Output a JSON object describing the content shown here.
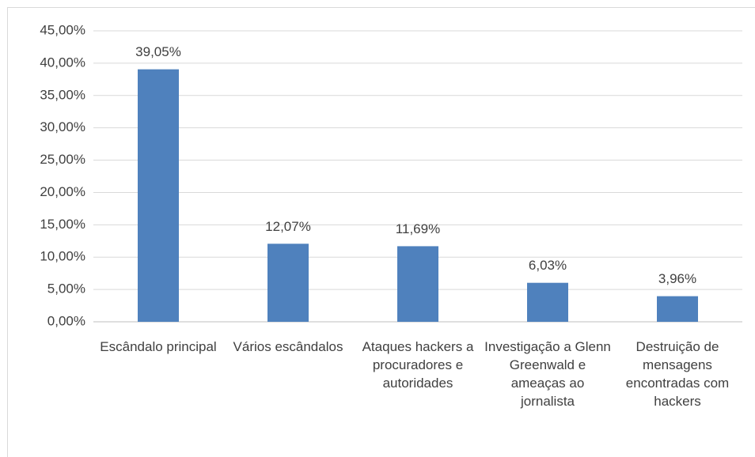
{
  "chart_data": {
    "type": "bar",
    "categories": [
      "Escândalo principal",
      "Vários escândalos",
      "Ataques hackers a procuradores e autoridades",
      "Investigação a Glenn Greenwald e ameaças ao jornalista",
      "Destruição de mensagens encontradas com hackers"
    ],
    "values": [
      39.05,
      12.07,
      11.69,
      6.03,
      3.96
    ],
    "value_labels": [
      "39,05%",
      "12,07%",
      "11,69%",
      "6,03%",
      "3,96%"
    ],
    "color": "#4f81bd",
    "ylim": [
      0,
      45
    ],
    "yticks": [
      {
        "value": 0,
        "label": "0,00%"
      },
      {
        "value": 5,
        "label": "5,00%"
      },
      {
        "value": 10,
        "label": "10,00%"
      },
      {
        "value": 15,
        "label": "15,00%"
      },
      {
        "value": 20,
        "label": "20,00%"
      },
      {
        "value": 25,
        "label": "25,00%"
      },
      {
        "value": 30,
        "label": "30,00%"
      },
      {
        "value": 35,
        "label": "35,00%"
      },
      {
        "value": 40,
        "label": "40,00%"
      },
      {
        "value": 45,
        "label": "45,00%"
      }
    ],
    "grid": true
  }
}
